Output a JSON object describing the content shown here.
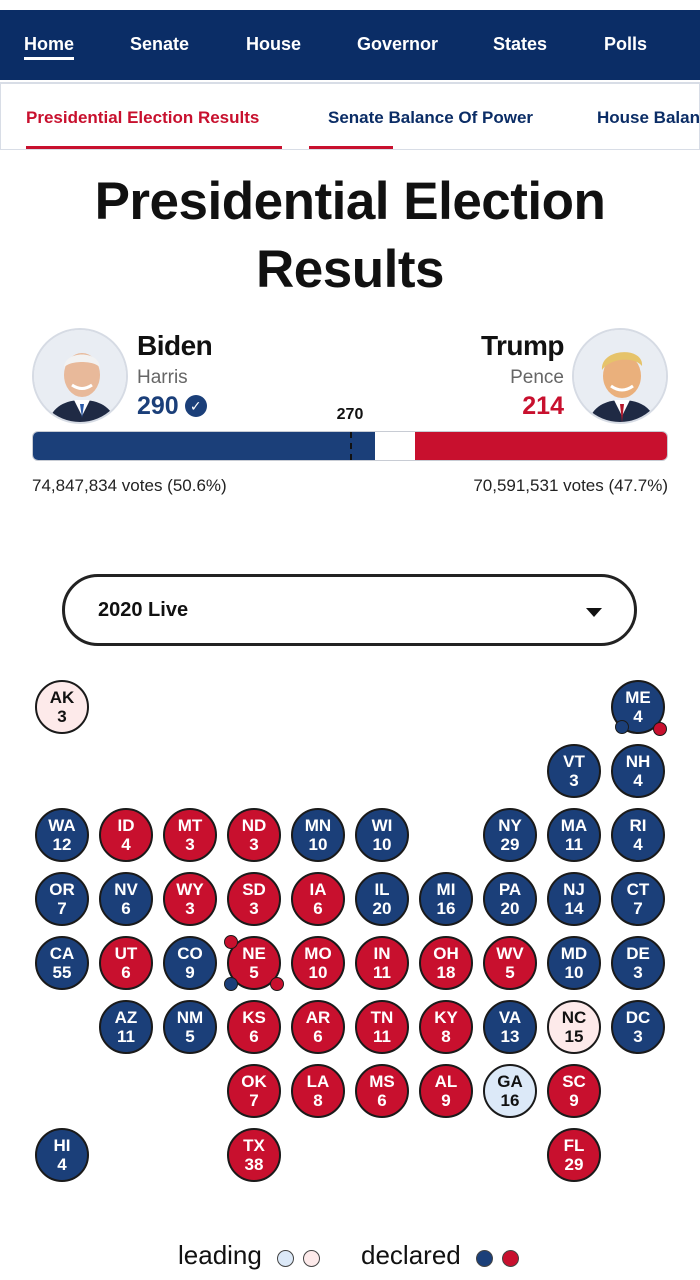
{
  "nav": {
    "items": [
      {
        "label": "Home",
        "active": true
      },
      {
        "label": "Senate"
      },
      {
        "label": "House"
      },
      {
        "label": "Governor"
      },
      {
        "label": "States"
      },
      {
        "label": "Polls"
      }
    ]
  },
  "subnav": {
    "items": [
      {
        "label": "Presidential Election Results",
        "active": true
      },
      {
        "label": "Senate Balance Of Power"
      },
      {
        "label": "House Balance Of Power"
      }
    ]
  },
  "page": {
    "title": "Presidential Election Results"
  },
  "race": {
    "threshold": "270",
    "dem": {
      "name": "Biden",
      "vp": "Harris",
      "ev": "290",
      "ev_value": 290,
      "votes": "74,847,834 votes (50.6%)",
      "color": "#1b3f79",
      "declared": true,
      "avatar_icon": "biden-portrait-icon"
    },
    "rep": {
      "name": "Trump",
      "vp": "Pence",
      "ev": "214",
      "ev_value": 214,
      "votes": "70,591,531 votes (47.7%)",
      "color": "#c8102e",
      "avatar_icon": "trump-portrait-icon"
    },
    "total_ev": 538
  },
  "dropdown": {
    "selected": "2020 Live"
  },
  "map": {
    "states": [
      {
        "ab": "AK",
        "ev": "3",
        "status": "rep-l",
        "row": 0,
        "col": 0
      },
      {
        "ab": "ME",
        "ev": "4",
        "status": "dem-d",
        "row": 0,
        "col": 9,
        "split": true
      },
      {
        "ab": "VT",
        "ev": "3",
        "status": "dem-d",
        "row": 1,
        "col": 8
      },
      {
        "ab": "NH",
        "ev": "4",
        "status": "dem-d",
        "row": 1,
        "col": 9
      },
      {
        "ab": "WA",
        "ev": "12",
        "status": "dem-d",
        "row": 2,
        "col": 0
      },
      {
        "ab": "ID",
        "ev": "4",
        "status": "rep-d",
        "row": 2,
        "col": 1
      },
      {
        "ab": "MT",
        "ev": "3",
        "status": "rep-d",
        "row": 2,
        "col": 2
      },
      {
        "ab": "ND",
        "ev": "3",
        "status": "rep-d",
        "row": 2,
        "col": 3
      },
      {
        "ab": "MN",
        "ev": "10",
        "status": "dem-d",
        "row": 2,
        "col": 4
      },
      {
        "ab": "WI",
        "ev": "10",
        "status": "dem-d",
        "row": 2,
        "col": 5
      },
      {
        "ab": "NY",
        "ev": "29",
        "status": "dem-d",
        "row": 2,
        "col": 7
      },
      {
        "ab": "MA",
        "ev": "11",
        "status": "dem-d",
        "row": 2,
        "col": 8
      },
      {
        "ab": "RI",
        "ev": "4",
        "status": "dem-d",
        "row": 2,
        "col": 9
      },
      {
        "ab": "OR",
        "ev": "7",
        "status": "dem-d",
        "row": 3,
        "col": 0
      },
      {
        "ab": "NV",
        "ev": "6",
        "status": "dem-d",
        "row": 3,
        "col": 1
      },
      {
        "ab": "WY",
        "ev": "3",
        "status": "rep-d",
        "row": 3,
        "col": 2
      },
      {
        "ab": "SD",
        "ev": "3",
        "status": "rep-d",
        "row": 3,
        "col": 3
      },
      {
        "ab": "IA",
        "ev": "6",
        "status": "rep-d",
        "row": 3,
        "col": 4
      },
      {
        "ab": "IL",
        "ev": "20",
        "status": "dem-d",
        "row": 3,
        "col": 5
      },
      {
        "ab": "MI",
        "ev": "16",
        "status": "dem-d",
        "row": 3,
        "col": 6
      },
      {
        "ab": "PA",
        "ev": "20",
        "status": "dem-d",
        "row": 3,
        "col": 7
      },
      {
        "ab": "NJ",
        "ev": "14",
        "status": "dem-d",
        "row": 3,
        "col": 8
      },
      {
        "ab": "CT",
        "ev": "7",
        "status": "dem-d",
        "row": 3,
        "col": 9
      },
      {
        "ab": "CA",
        "ev": "55",
        "status": "dem-d",
        "row": 4,
        "col": 0
      },
      {
        "ab": "UT",
        "ev": "6",
        "status": "rep-d",
        "row": 4,
        "col": 1
      },
      {
        "ab": "CO",
        "ev": "9",
        "status": "dem-d",
        "row": 4,
        "col": 2
      },
      {
        "ab": "NE",
        "ev": "5",
        "status": "rep-d",
        "row": 4,
        "col": 3,
        "split": true
      },
      {
        "ab": "MO",
        "ev": "10",
        "status": "rep-d",
        "row": 4,
        "col": 4
      },
      {
        "ab": "IN",
        "ev": "11",
        "status": "rep-d",
        "row": 4,
        "col": 5
      },
      {
        "ab": "OH",
        "ev": "18",
        "status": "rep-d",
        "row": 4,
        "col": 6
      },
      {
        "ab": "WV",
        "ev": "5",
        "status": "rep-d",
        "row": 4,
        "col": 7
      },
      {
        "ab": "MD",
        "ev": "10",
        "status": "dem-d",
        "row": 4,
        "col": 8
      },
      {
        "ab": "DE",
        "ev": "3",
        "status": "dem-d",
        "row": 4,
        "col": 9
      },
      {
        "ab": "AZ",
        "ev": "11",
        "status": "dem-d",
        "row": 5,
        "col": 1
      },
      {
        "ab": "NM",
        "ev": "5",
        "status": "dem-d",
        "row": 5,
        "col": 2
      },
      {
        "ab": "KS",
        "ev": "6",
        "status": "rep-d",
        "row": 5,
        "col": 3
      },
      {
        "ab": "AR",
        "ev": "6",
        "status": "rep-d",
        "row": 5,
        "col": 4
      },
      {
        "ab": "TN",
        "ev": "11",
        "status": "rep-d",
        "row": 5,
        "col": 5
      },
      {
        "ab": "KY",
        "ev": "8",
        "status": "rep-d",
        "row": 5,
        "col": 6
      },
      {
        "ab": "VA",
        "ev": "13",
        "status": "dem-d",
        "row": 5,
        "col": 7
      },
      {
        "ab": "NC",
        "ev": "15",
        "status": "rep-l",
        "row": 5,
        "col": 8
      },
      {
        "ab": "DC",
        "ev": "3",
        "status": "dem-d",
        "row": 5,
        "col": 9
      },
      {
        "ab": "OK",
        "ev": "7",
        "status": "rep-d",
        "row": 6,
        "col": 3
      },
      {
        "ab": "LA",
        "ev": "8",
        "status": "rep-d",
        "row": 6,
        "col": 4
      },
      {
        "ab": "MS",
        "ev": "6",
        "status": "rep-d",
        "row": 6,
        "col": 5
      },
      {
        "ab": "AL",
        "ev": "9",
        "status": "rep-d",
        "row": 6,
        "col": 6
      },
      {
        "ab": "GA",
        "ev": "16",
        "status": "dem-l",
        "row": 6,
        "col": 7
      },
      {
        "ab": "SC",
        "ev": "9",
        "status": "rep-d",
        "row": 6,
        "col": 8
      },
      {
        "ab": "HI",
        "ev": "4",
        "status": "dem-d",
        "row": 7,
        "col": 0
      },
      {
        "ab": "TX",
        "ev": "38",
        "status": "rep-d",
        "row": 7,
        "col": 3
      },
      {
        "ab": "FL",
        "ev": "29",
        "status": "rep-d",
        "row": 7,
        "col": 8
      }
    ]
  },
  "legend": {
    "leading": "leading",
    "declared": "declared",
    "colors": {
      "dem_light": "#dce9f8",
      "rep_light": "#fdeaea",
      "dem": "#1b3f79",
      "rep": "#c8102e"
    }
  }
}
